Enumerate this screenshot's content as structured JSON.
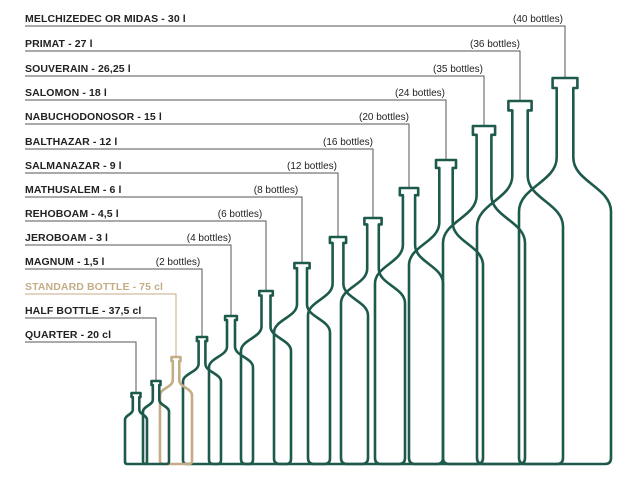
{
  "colors": {
    "primary": "#1d5a4c",
    "highlight": "#c4ad86",
    "leader": "#555555",
    "fill": "#ffffff"
  },
  "bottles": [
    {
      "name": "MELCHIZEDEC OR MIDAS - 30 l",
      "count": "(40 bottles)",
      "volume_l": 30,
      "highlight": false
    },
    {
      "name": "PRIMAT - 27 l",
      "count": "(36 bottles)",
      "volume_l": 27,
      "highlight": false
    },
    {
      "name": "SOUVERAIN - 26,25 l",
      "count": "(35 bottles)",
      "volume_l": 26.25,
      "highlight": false
    },
    {
      "name": "SALOMON - 18 l",
      "count": "(24 bottles)",
      "volume_l": 18,
      "highlight": false
    },
    {
      "name": "NABUCHODONOSOR - 15 l",
      "count": "(20 bottles)",
      "volume_l": 15,
      "highlight": false
    },
    {
      "name": "BALTHAZAR - 12 l",
      "count": "(16 bottles)",
      "volume_l": 12,
      "highlight": false
    },
    {
      "name": "SALMANAZAR - 9 l",
      "count": "(12 bottles)",
      "volume_l": 9,
      "highlight": false
    },
    {
      "name": "MATHUSALEM - 6 l",
      "count": "(8 bottles)",
      "volume_l": 6,
      "highlight": false
    },
    {
      "name": "REHOBOAM - 4,5 l",
      "count": "(6 bottles)",
      "volume_l": 4.5,
      "highlight": false
    },
    {
      "name": "JEROBOAM - 3 l",
      "count": "(4 bottles)",
      "volume_l": 3,
      "highlight": false
    },
    {
      "name": "MAGNUM - 1,5 l",
      "count": "(2 bottles)",
      "volume_l": 1.5,
      "highlight": false
    },
    {
      "name": "STANDARD BOTTLE - 75 cl",
      "count": "",
      "volume_l": 0.75,
      "highlight": true
    },
    {
      "name": "HALF BOTTLE - 37,5 cl",
      "count": "",
      "volume_l": 0.375,
      "highlight": false
    },
    {
      "name": "QUARTER - 20 cl",
      "count": "",
      "volume_l": 0.2,
      "highlight": false
    }
  ]
}
